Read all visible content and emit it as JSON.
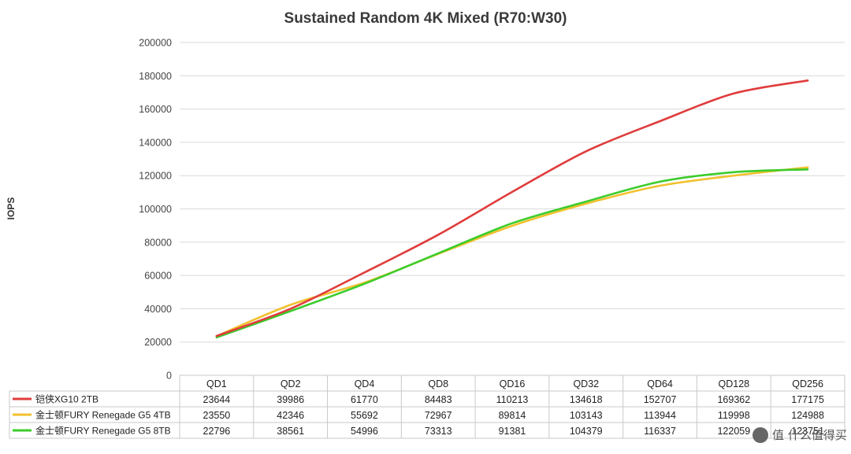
{
  "chart_data": {
    "type": "line",
    "title": "Sustained Random 4K Mixed (R70:W30)",
    "xlabel": "",
    "ylabel": "IOPS",
    "ylim": [
      0,
      200000
    ],
    "yticks": [
      "0",
      "20000",
      "40000",
      "60000",
      "80000",
      "100000",
      "120000",
      "140000",
      "160000",
      "180000",
      "200000"
    ],
    "grid": true,
    "legend": "data-table",
    "categories": [
      "QD1",
      "QD2",
      "QD4",
      "QD8",
      "QD16",
      "QD32",
      "QD64",
      "QD128",
      "QD256"
    ],
    "series": [
      {
        "name": "铠侠XG10 2TB",
        "color": "#e03c3c",
        "values": [
          23644,
          39986,
          61770,
          84483,
          110213,
          134618,
          152707,
          169362,
          177175
        ]
      },
      {
        "name": "金士顿FURY Renegade G5 4TB",
        "color": "#f2c12e",
        "values": [
          23550,
          42346,
          55692,
          72967,
          89814,
          103143,
          113944,
          119998,
          124988
        ]
      },
      {
        "name": "金士顿FURY Renegade G5 8TB",
        "color": "#3ccc2c",
        "values": [
          22796,
          38561,
          54996,
          73313,
          91381,
          104379,
          116337,
          122059,
          123751
        ]
      }
    ]
  },
  "watermark": "值 什么值得买"
}
